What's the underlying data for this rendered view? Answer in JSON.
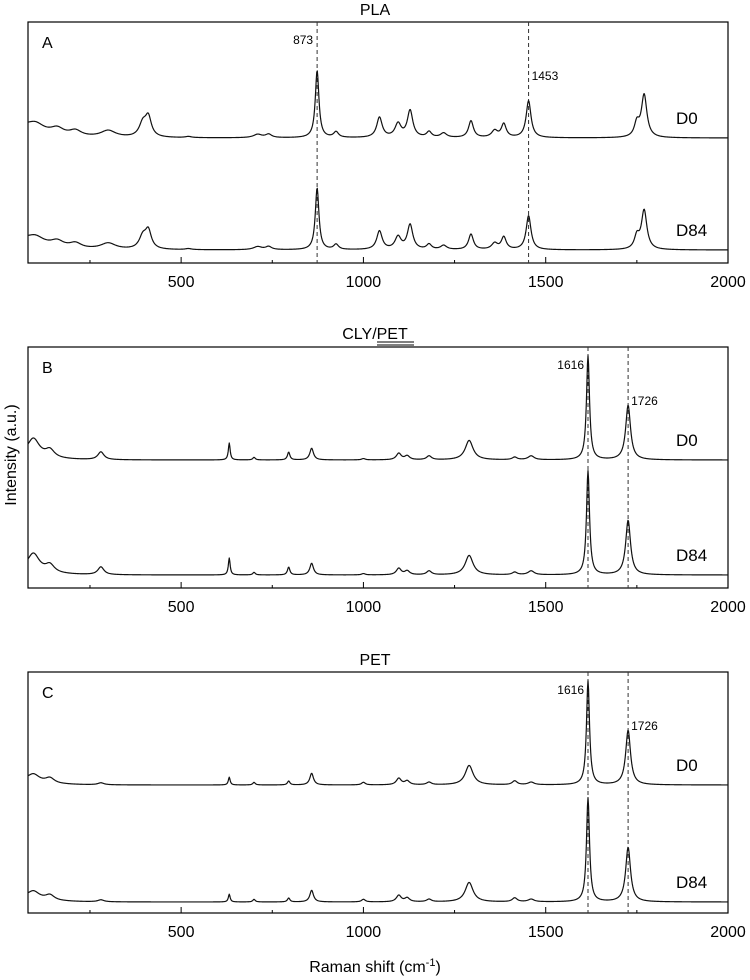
{
  "figure": {
    "ylabel": "Intensity (a.u.)",
    "xlabel_main": "Raman shift (cm",
    "xlabel_sup": "-1",
    "xlabel_tail": ")"
  },
  "chart_data": [
    {
      "type": "line",
      "letter": "A",
      "title": "PLA",
      "underline_title": false,
      "xlim": [
        80,
        2000
      ],
      "xticks": [
        500,
        1000,
        1500,
        2000
      ],
      "xtick_minor": [
        250,
        750,
        1250,
        1750
      ],
      "grid": false,
      "reference_lines": [
        {
          "x": 873,
          "label": "873",
          "label_side": "left"
        },
        {
          "x": 1453,
          "label": "1453",
          "label_side": "right"
        }
      ],
      "baseline": 8,
      "peaks": [
        [
          100,
          8,
          30
        ],
        [
          160,
          6,
          22
        ],
        [
          210,
          5,
          20
        ],
        [
          300,
          6,
          25
        ],
        [
          395,
          12,
          12
        ],
        [
          410,
          17,
          10
        ],
        [
          520,
          1,
          10
        ],
        [
          710,
          3,
          14
        ],
        [
          740,
          3,
          10
        ],
        [
          873,
          60,
          6
        ],
        [
          925,
          5,
          8
        ],
        [
          1044,
          18,
          9
        ],
        [
          1095,
          12,
          10
        ],
        [
          1128,
          24,
          9
        ],
        [
          1180,
          5,
          8
        ],
        [
          1220,
          4,
          10
        ],
        [
          1295,
          15,
          8
        ],
        [
          1360,
          6,
          10
        ],
        [
          1385,
          12,
          8
        ],
        [
          1453,
          33,
          8
        ],
        [
          1750,
          12,
          8
        ],
        [
          1770,
          38,
          9
        ]
      ],
      "series": [
        {
          "name": "D0",
          "scale": 1.0
        },
        {
          "name": "D84",
          "scale": 0.92
        }
      ]
    },
    {
      "type": "line",
      "letter": "B",
      "title": "CLY/PET",
      "underline_title": true,
      "xlim": [
        80,
        2000
      ],
      "xticks": [
        500,
        1000,
        1500,
        2000
      ],
      "xtick_minor": [
        250,
        750,
        1250,
        1750
      ],
      "grid": false,
      "reference_lines": [
        {
          "x": 1616,
          "label": "1616",
          "label_side": "left"
        },
        {
          "x": 1726,
          "label": "1726",
          "label_side": "right"
        }
      ],
      "baseline": 3,
      "peaks": [
        [
          95,
          14,
          20
        ],
        [
          140,
          6,
          15
        ],
        [
          280,
          6,
          10
        ],
        [
          632,
          13,
          3
        ],
        [
          700,
          2,
          4
        ],
        [
          795,
          6,
          4
        ],
        [
          858,
          9,
          6
        ],
        [
          1000,
          1,
          6
        ],
        [
          1097,
          5,
          8
        ],
        [
          1120,
          3,
          8
        ],
        [
          1180,
          3,
          8
        ],
        [
          1290,
          15,
          13
        ],
        [
          1415,
          2,
          8
        ],
        [
          1460,
          3,
          10
        ],
        [
          1616,
          80,
          5
        ],
        [
          1726,
          42,
          8
        ]
      ],
      "series": [
        {
          "name": "D0",
          "scale": 1.0
        },
        {
          "name": "D84",
          "scale": 1.0
        }
      ]
    },
    {
      "type": "line",
      "letter": "C",
      "title": "PET",
      "underline_title": false,
      "xlim": [
        80,
        2000
      ],
      "xticks": [
        500,
        1000,
        1500,
        2000
      ],
      "xtick_minor": [
        250,
        750,
        1250,
        1750
      ],
      "grid": false,
      "reference_lines": [
        {
          "x": 1616,
          "label": "1616",
          "label_side": "left"
        },
        {
          "x": 1726,
          "label": "1726",
          "label_side": "right"
        }
      ],
      "baseline": 3,
      "peaks": [
        [
          95,
          6,
          20
        ],
        [
          140,
          4,
          15
        ],
        [
          280,
          1.5,
          10
        ],
        [
          632,
          6,
          3
        ],
        [
          700,
          2,
          4
        ],
        [
          795,
          3,
          4
        ],
        [
          858,
          9,
          6
        ],
        [
          1000,
          2,
          6
        ],
        [
          1097,
          5,
          8
        ],
        [
          1120,
          3,
          8
        ],
        [
          1180,
          2,
          8
        ],
        [
          1290,
          15,
          13
        ],
        [
          1415,
          3,
          8
        ],
        [
          1460,
          2,
          10
        ],
        [
          1616,
          80,
          5
        ],
        [
          1726,
          42,
          8
        ]
      ],
      "series": [
        {
          "name": "D0",
          "scale": 1.0
        },
        {
          "name": "D84",
          "scale": 1.0
        }
      ]
    }
  ]
}
